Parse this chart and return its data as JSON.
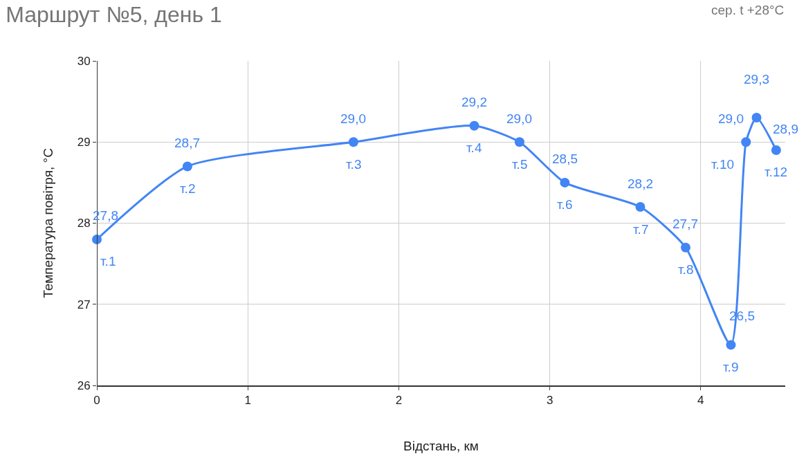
{
  "chart_data": {
    "type": "line",
    "title": "Маршрут №5, день 1",
    "xlabel": "Відстань, км",
    "ylabel": "Температура повітря, °C",
    "x": [
      0,
      0.6,
      1.7,
      2.5,
      2.8,
      3.1,
      3.6,
      3.9,
      4.2,
      4.3,
      4.37,
      4.5
    ],
    "series": [
      {
        "color": "#4285f4",
        "values": [
          27.8,
          28.7,
          29.0,
          29.2,
          29.0,
          28.5,
          28.2,
          27.7,
          26.5,
          29.0,
          29.3,
          28.9
        ],
        "value_labels": [
          "27,8",
          "28,7",
          "29,0",
          "29,2",
          "29,0",
          "28,5",
          "28,2",
          "27,7",
          "26,5",
          "29,0",
          "29,3",
          "28,9"
        ]
      }
    ],
    "annotations": [
      "сер. t +28°C",
      {
        "text": "т.1",
        "x": 0,
        "y": 27.8
      },
      {
        "text": "т.2",
        "x": 0.6,
        "y": 28.7
      },
      {
        "text": "т.3",
        "x": 1.7,
        "y": 29.0
      },
      {
        "text": "т.4",
        "x": 2.5,
        "y": 29.2
      },
      {
        "text": "т.5",
        "x": 2.8,
        "y": 29.0
      },
      {
        "text": "т.6",
        "x": 3.1,
        "y": 28.5
      },
      {
        "text": "т.7",
        "x": 3.6,
        "y": 28.2
      },
      {
        "text": "т.8",
        "x": 3.9,
        "y": 27.7
      },
      {
        "text": "т.9",
        "x": 4.2,
        "y": 26.5
      },
      {
        "text": "т.10",
        "x": 4.3,
        "y": 29.0
      },
      {
        "text": "т.12",
        "x": 4.5,
        "y": 28.9
      }
    ],
    "xlim": [
      0,
      4.56
    ],
    "xticks": [
      0,
      1,
      2,
      3,
      4
    ],
    "ylim": [
      26,
      30
    ],
    "yticks": [
      26,
      27,
      28,
      29,
      30
    ],
    "grid": true,
    "legend": false,
    "marker": "circle",
    "line_style": "solid"
  }
}
